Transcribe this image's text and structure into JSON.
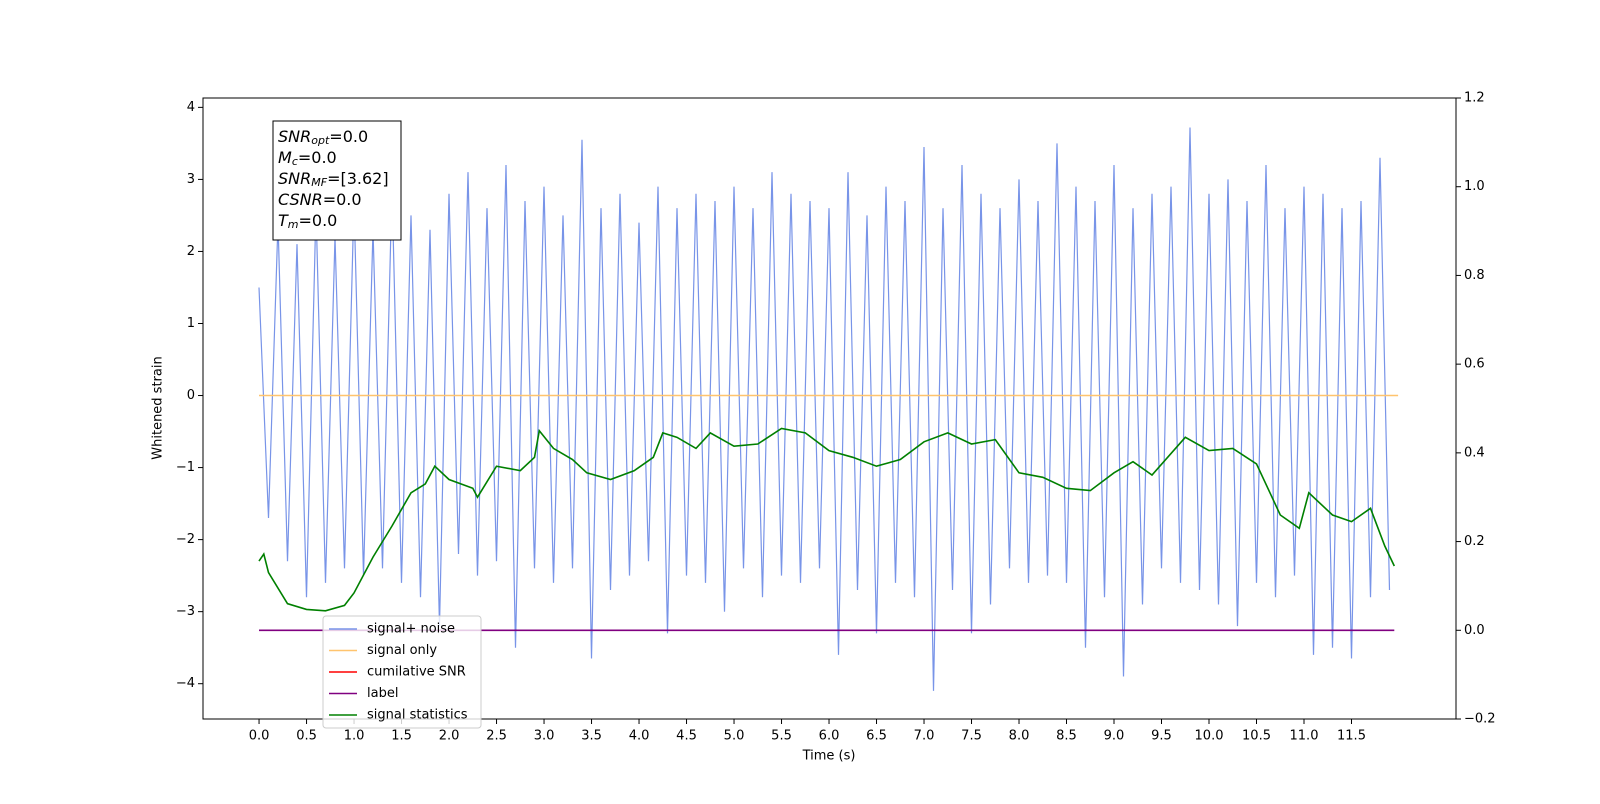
{
  "chart_data": {
    "type": "line",
    "xlabel": "Time (s)",
    "ylabel": "Whitened strain",
    "xlim": [
      -0.59,
      12.6
    ],
    "ylim": [
      -4.49,
      4.13
    ],
    "y2lim": [
      -0.2,
      1.2
    ],
    "xticks": [
      {
        "value": 0,
        "label": "0.0"
      },
      0.5,
      {
        "value": 1,
        "label": "1.0"
      },
      1.5,
      {
        "value": 2,
        "label": "2.0"
      },
      2.5,
      {
        "value": 3,
        "label": "3.0"
      },
      3.5,
      {
        "value": 4,
        "label": "4.0"
      },
      4.5,
      {
        "value": 5,
        "label": "5.0"
      },
      5.5,
      {
        "value": 6,
        "label": "6.0"
      },
      6.5,
      {
        "value": 7,
        "label": "7.0"
      },
      7.5,
      {
        "value": 8,
        "label": "8.0"
      },
      8.5,
      {
        "value": 9,
        "label": "9.0"
      },
      9.5,
      {
        "value": 10,
        "label": "10.0"
      },
      10.5,
      {
        "value": 11,
        "label": "11.0"
      },
      11.5
    ],
    "yticks": [
      {
        "value": -4,
        "label": "−4"
      },
      {
        "value": -3,
        "label": "−3"
      },
      {
        "value": -2,
        "label": "−2"
      },
      {
        "value": -1,
        "label": "−1"
      },
      0,
      1,
      2,
      3,
      4
    ],
    "y2ticks": [
      {
        "value": -0.2,
        "label": "−0.2"
      },
      {
        "value": 0,
        "label": "0.0"
      },
      0.2,
      0.4,
      0.6,
      0.8,
      {
        "value": 1,
        "label": "1.0"
      },
      1.2
    ],
    "annotation": [
      {
        "main": "SNR",
        "sub": "opt",
        "rest": "=0.0"
      },
      {
        "main": "M",
        "sub": "c",
        "rest": "=0.0"
      },
      {
        "main": "SNR",
        "sub": "MF",
        "rest": "=[3.62]"
      },
      {
        "main": "CSNR",
        "sub": null,
        "rest": "=0.0"
      },
      {
        "main": "T",
        "sub": "m",
        "rest": "=0.0"
      }
    ],
    "series": [
      {
        "name": "signal+ noise",
        "color": "#7894e8",
        "x": [
          0,
          0.1,
          0.2,
          0.3,
          0.4,
          0.5,
          0.6,
          0.7,
          0.8,
          0.9,
          1,
          1.1,
          1.2,
          1.3,
          1.4,
          1.5,
          1.6,
          1.7,
          1.8,
          1.9,
          2,
          2.1,
          2.2,
          2.3,
          2.4,
          2.5,
          2.6,
          2.7,
          2.8,
          2.9,
          3,
          3.1,
          3.2,
          3.3,
          3.4,
          3.5,
          3.6,
          3.7,
          3.8,
          3.9,
          4,
          4.1,
          4.2,
          4.3,
          4.4,
          4.5,
          4.6,
          4.7,
          4.8,
          4.9,
          5,
          5.1,
          5.2,
          5.3,
          5.4,
          5.5,
          5.6,
          5.7,
          5.8,
          5.9,
          6,
          6.1,
          6.2,
          6.3,
          6.4,
          6.5,
          6.6,
          6.7,
          6.8,
          6.9,
          7,
          7.1,
          7.2,
          7.3,
          7.4,
          7.5,
          7.6,
          7.7,
          7.8,
          7.9,
          8,
          8.1,
          8.2,
          8.3,
          8.4,
          8.5,
          8.6,
          8.7,
          8.8,
          8.9,
          9,
          9.1,
          9.2,
          9.3,
          9.4,
          9.5,
          9.6,
          9.7,
          9.8,
          9.9,
          10,
          10.1,
          10.2,
          10.3,
          10.4,
          10.5,
          10.6,
          10.7,
          10.8,
          10.9,
          11,
          11.1,
          11.2,
          11.3,
          11.4,
          11.5,
          11.6,
          11.7,
          11.8,
          11.9
        ],
        "values": [
          1.5,
          -1.7,
          2.4,
          -2.3,
          2.1,
          -2.8,
          2.6,
          -2.6,
          2.2,
          -2.4,
          2.7,
          -2.5,
          2.3,
          -2.4,
          2.9,
          -2.6,
          2.5,
          -2.8,
          2.3,
          -3.2,
          2.8,
          -2.2,
          3.1,
          -2.5,
          2.6,
          -2.3,
          3.2,
          -3.5,
          2.7,
          -2.4,
          2.9,
          -2.6,
          2.5,
          -2.4,
          3.55,
          -3.65,
          2.6,
          -2.7,
          2.8,
          -2.5,
          2.4,
          -2.3,
          2.9,
          -3.3,
          2.6,
          -2.5,
          2.8,
          -2.6,
          2.7,
          -3.0,
          2.9,
          -2.4,
          2.6,
          -2.8,
          3.1,
          -2.5,
          2.8,
          -2.6,
          2.7,
          -2.4,
          2.6,
          -3.6,
          3.1,
          -2.7,
          2.5,
          -3.3,
          2.9,
          -2.6,
          2.7,
          -2.8,
          3.45,
          -4.1,
          2.6,
          -2.7,
          3.2,
          -3.3,
          2.8,
          -2.9,
          2.6,
          -2.4,
          3.0,
          -2.6,
          2.7,
          -2.5,
          3.5,
          -2.6,
          2.9,
          -3.5,
          2.7,
          -2.8,
          3.2,
          -3.9,
          2.6,
          -2.9,
          2.8,
          -2.4,
          2.9,
          -2.6,
          3.72,
          -2.7,
          2.8,
          -2.9,
          3.0,
          -3.2,
          2.7,
          -2.6,
          3.2,
          -2.8,
          2.6,
          -2.5,
          2.9,
          -3.6,
          2.8,
          -3.5,
          2.6,
          -3.65,
          2.7,
          -2.8,
          3.3,
          -2.7
        ]
      },
      {
        "name": "signal only",
        "color": "#ffc46e",
        "x": [
          0,
          11.99
        ],
        "values": [
          0,
          0
        ]
      },
      {
        "name": "cumilative SNR",
        "color": "#ff0000"
      },
      {
        "name": "label",
        "color": "#800080",
        "axis": "y2",
        "x": [
          0,
          11.95
        ],
        "values": [
          0,
          0
        ]
      },
      {
        "name": "signal statistics",
        "color": "#008000",
        "axis": "y2",
        "x": [
          0,
          0.05,
          0.1,
          0.3,
          0.5,
          0.7,
          0.9,
          1,
          1.2,
          1.4,
          1.6,
          1.75,
          1.85,
          2,
          2.25,
          2.3,
          2.5,
          2.75,
          2.9,
          2.95,
          3.1,
          3.3,
          3.45,
          3.7,
          3.95,
          4.15,
          4.25,
          4.4,
          4.6,
          4.75,
          5,
          5.25,
          5.5,
          5.75,
          6,
          6.25,
          6.5,
          6.75,
          7,
          7.25,
          7.5,
          7.75,
          8,
          8.25,
          8.5,
          8.75,
          9,
          9.2,
          9.4,
          9.75,
          10,
          10.25,
          10.5,
          10.75,
          10.95,
          11.05,
          11.3,
          11.5,
          11.7,
          11.85,
          11.95
        ],
        "values": [
          0.156,
          0.172,
          0.13,
          0.06,
          0.047,
          0.044,
          0.056,
          0.084,
          0.165,
          0.235,
          0.31,
          0.33,
          0.37,
          0.34,
          0.32,
          0.3,
          0.37,
          0.36,
          0.39,
          0.45,
          0.41,
          0.385,
          0.355,
          0.34,
          0.36,
          0.39,
          0.445,
          0.435,
          0.41,
          0.445,
          0.415,
          0.42,
          0.455,
          0.445,
          0.405,
          0.39,
          0.37,
          0.385,
          0.425,
          0.445,
          0.42,
          0.43,
          0.355,
          0.345,
          0.32,
          0.315,
          0.355,
          0.38,
          0.35,
          0.435,
          0.405,
          0.41,
          0.375,
          0.26,
          0.23,
          0.31,
          0.26,
          0.245,
          0.275,
          0.19,
          0.145
        ]
      }
    ]
  }
}
